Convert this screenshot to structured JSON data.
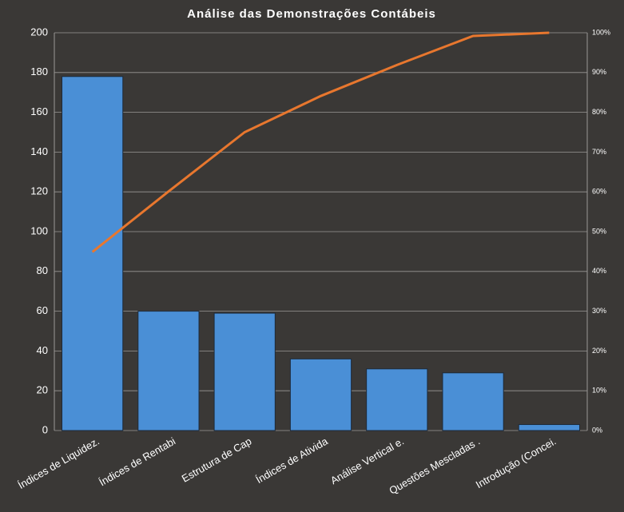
{
  "chart_data": {
    "type": "bar",
    "title": "Análise das Demonstrações Contábeis",
    "categories": [
      "Índices de Liquidez.",
      "Índices de Rentabi",
      "Estrutura de Cap",
      "Índices de Ativida",
      "Análise Vertical e.",
      "Questões Mescladas .",
      "Introdução  (Concei."
    ],
    "series": [
      {
        "type": "bar",
        "color": "#4a8fd6",
        "values": [
          178,
          60,
          59,
          36,
          31,
          29,
          3
        ]
      },
      {
        "type": "line",
        "axis": "y2",
        "color": "#e8772e",
        "values": [
          44.9,
          60.1,
          75.0,
          84.1,
          91.9,
          99.2,
          100
        ]
      }
    ],
    "ylim": [
      0,
      200
    ],
    "yticks": [
      0,
      20,
      40,
      60,
      80,
      100,
      120,
      140,
      160,
      180,
      200
    ],
    "y2lim": [
      0,
      100
    ],
    "y2ticks": [
      {
        "value": 0,
        "label": "0%"
      },
      {
        "value": 10,
        "label": "10%"
      },
      {
        "value": 20,
        "label": "20%"
      },
      {
        "value": 30,
        "label": "30%"
      },
      {
        "value": 40,
        "label": "40%"
      },
      {
        "value": 50,
        "label": "50%"
      },
      {
        "value": 60,
        "label": "60%"
      },
      {
        "value": 70,
        "label": "70%"
      },
      {
        "value": 80,
        "label": "80%"
      },
      {
        "value": 90,
        "label": "90%"
      },
      {
        "value": 100,
        "label": "100%"
      }
    ],
    "grid": true
  }
}
